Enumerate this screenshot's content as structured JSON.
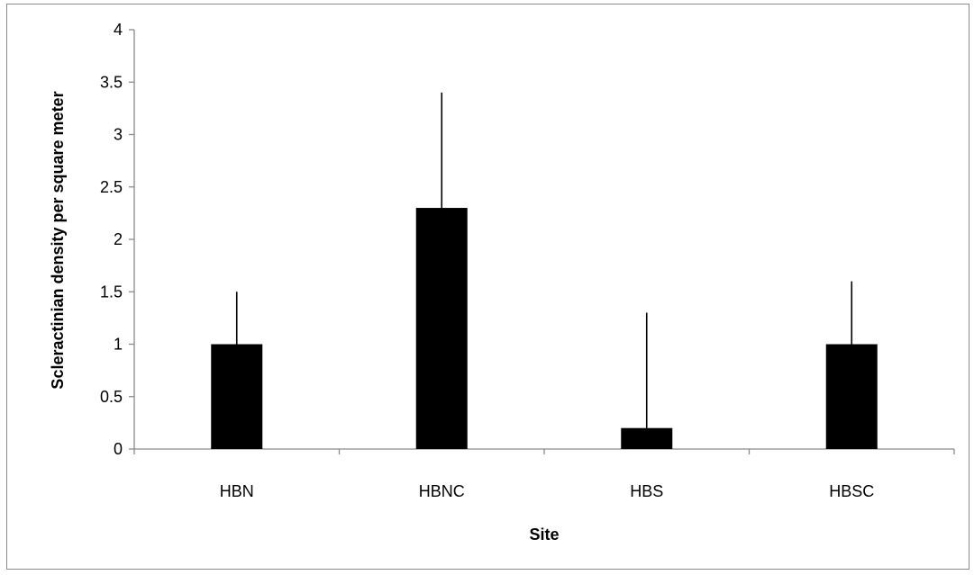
{
  "chart_data": {
    "type": "bar",
    "title": "",
    "xlabel": "Site",
    "ylabel": "Scleractinian density per square meter",
    "categories": [
      "HBN",
      "HBNC",
      "HBS",
      "HBSC"
    ],
    "values": [
      1.0,
      2.3,
      0.2,
      1.0
    ],
    "error_upper": [
      1.5,
      3.4,
      1.3,
      1.6
    ],
    "ylim": [
      0,
      4
    ],
    "yticks": [
      "0",
      "0.5",
      "1",
      "1.5",
      "2",
      "2.5",
      "3",
      "3.5",
      "4"
    ],
    "grid": false,
    "legend": "none",
    "bar_color": "#000000"
  }
}
